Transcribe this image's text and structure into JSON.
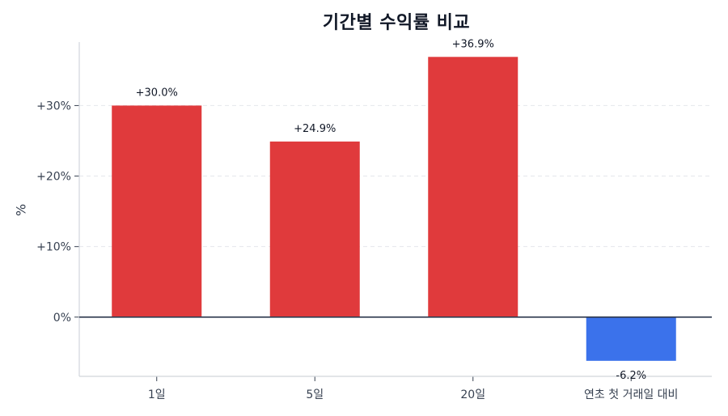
{
  "chart_data": {
    "type": "bar",
    "title": "기간별 수익률 비교",
    "xlabel": "",
    "ylabel": "%",
    "categories": [
      "1일",
      "5일",
      "20일",
      "연초 첫 거래일 대비"
    ],
    "values": [
      30.0,
      24.9,
      36.9,
      -6.2
    ],
    "value_labels": [
      "+30.0%",
      "+24.9%",
      "+36.9%",
      "-6.2%"
    ],
    "bar_colors": [
      "#e03a3c",
      "#e03a3c",
      "#e03a3c",
      "#3b72eb"
    ],
    "ylim": [
      -8.4,
      39
    ],
    "yticks": [
      0,
      10,
      20,
      30
    ],
    "ytick_labels": [
      "0%",
      "+10%",
      "+20%",
      "+30%"
    ],
    "grid": "horizontal dashed",
    "zero_line": true,
    "legend": null
  },
  "colors": {
    "positive": "#e03a3c",
    "negative": "#3b72eb",
    "zero_line": "#2f3a4f",
    "grid": "#e5e7eb",
    "axis": "#d1d5db"
  }
}
